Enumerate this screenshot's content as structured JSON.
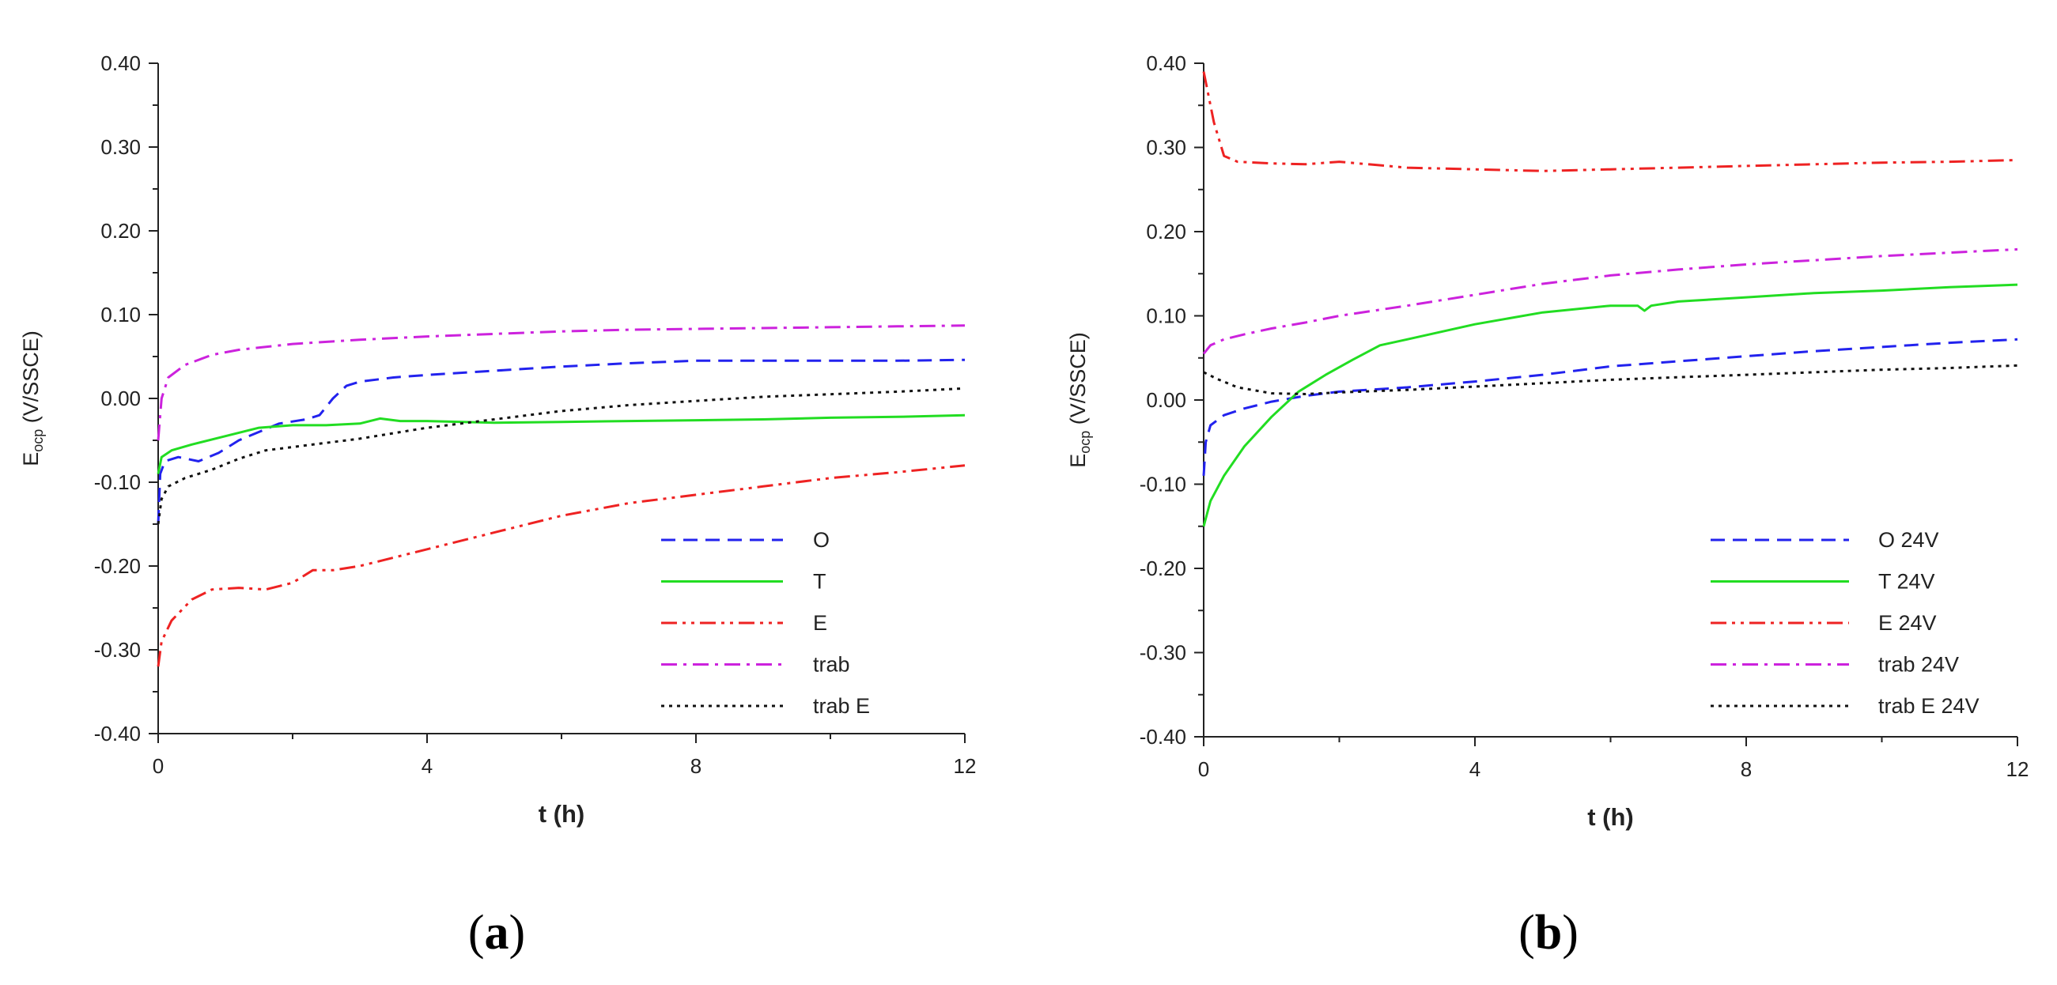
{
  "chart_data": [
    {
      "type": "line",
      "panel_label": "a",
      "xlabel": "t (h)",
      "ylabel_main": "E",
      "ylabel_sub": "ocp",
      "ylabel_rest": " (V/SSCE)",
      "xlim": [
        0,
        12
      ],
      "ylim": [
        -0.4,
        0.4
      ],
      "xticks": [
        0,
        4,
        8,
        12
      ],
      "yticks": [
        -0.4,
        -0.3,
        -0.2,
        -0.1,
        0.0,
        0.1,
        0.2,
        0.3,
        0.4
      ],
      "ytick_labels": [
        "-0.40",
        "-0.30",
        "-0.20",
        "-0.10",
        "0.00",
        "0.10",
        "0.20",
        "0.30",
        "0.40"
      ],
      "grid": false,
      "legend": "bottom-right",
      "series": [
        {
          "name": "O",
          "color": "#2222ee",
          "dash": "dash",
          "x": [
            0,
            0.03,
            0.1,
            0.3,
            0.6,
            0.9,
            1.2,
            1.8,
            2.2,
            2.4,
            2.6,
            2.8,
            3.0,
            3.5,
            4,
            5,
            6,
            7,
            8,
            9,
            10,
            11,
            12
          ],
          "y": [
            -0.15,
            -0.09,
            -0.075,
            -0.07,
            -0.075,
            -0.065,
            -0.05,
            -0.03,
            -0.025,
            -0.02,
            0.0,
            0.015,
            0.02,
            0.025,
            0.028,
            0.033,
            0.038,
            0.042,
            0.045,
            0.045,
            0.045,
            0.045,
            0.046
          ]
        },
        {
          "name": "T",
          "color": "#22dd22",
          "dash": "solid",
          "x": [
            0,
            0.05,
            0.2,
            0.5,
            1,
            1.5,
            2,
            2.5,
            3,
            3.3,
            3.6,
            4,
            5,
            6,
            7,
            8,
            9,
            10,
            11,
            12
          ],
          "y": [
            -0.09,
            -0.07,
            -0.062,
            -0.055,
            -0.045,
            -0.035,
            -0.032,
            -0.032,
            -0.03,
            -0.024,
            -0.027,
            -0.027,
            -0.029,
            -0.028,
            -0.027,
            -0.026,
            -0.025,
            -0.023,
            -0.022,
            -0.02
          ]
        },
        {
          "name": "E",
          "color": "#ee2222",
          "dash": "dashdotdot",
          "x": [
            0,
            0.05,
            0.2,
            0.5,
            0.8,
            1.2,
            1.6,
            2.0,
            2.3,
            2.6,
            3,
            4,
            5,
            6,
            7,
            8,
            9,
            10,
            11,
            12
          ],
          "y": [
            -0.32,
            -0.29,
            -0.265,
            -0.24,
            -0.228,
            -0.226,
            -0.228,
            -0.22,
            -0.205,
            -0.205,
            -0.2,
            -0.18,
            -0.16,
            -0.14,
            -0.125,
            -0.115,
            -0.105,
            -0.095,
            -0.088,
            -0.08
          ]
        },
        {
          "name": "trab",
          "color": "#cc22dd",
          "dash": "dashdot",
          "x": [
            0,
            0.05,
            0.15,
            0.4,
            0.8,
            1.2,
            2,
            3,
            4,
            5,
            6,
            7,
            8,
            9,
            10,
            11,
            12
          ],
          "y": [
            -0.05,
            0.0,
            0.025,
            0.04,
            0.052,
            0.058,
            0.065,
            0.07,
            0.074,
            0.077,
            0.08,
            0.082,
            0.083,
            0.084,
            0.085,
            0.086,
            0.087
          ]
        },
        {
          "name": "trab E",
          "color": "#111111",
          "dash": "dot",
          "x": [
            0,
            0.05,
            0.15,
            0.4,
            0.8,
            1.2,
            1.6,
            2,
            3,
            4,
            5,
            6,
            7,
            8,
            9,
            10,
            11,
            12
          ],
          "y": [
            -0.15,
            -0.12,
            -0.105,
            -0.095,
            -0.085,
            -0.072,
            -0.062,
            -0.058,
            -0.048,
            -0.035,
            -0.025,
            -0.015,
            -0.008,
            -0.003,
            0.002,
            0.005,
            0.008,
            0.012
          ]
        }
      ]
    },
    {
      "type": "line",
      "panel_label": "b",
      "xlabel": "t (h)",
      "ylabel_main": "E",
      "ylabel_sub": "ocp",
      "ylabel_rest": " (V/SSCE)",
      "xlim": [
        0,
        12
      ],
      "ylim": [
        -0.4,
        0.4
      ],
      "xticks": [
        0,
        4,
        8,
        12
      ],
      "yticks": [
        -0.4,
        -0.3,
        -0.2,
        -0.1,
        0.0,
        0.1,
        0.2,
        0.3,
        0.4
      ],
      "ytick_labels": [
        "-0.40",
        "-0.30",
        "-0.20",
        "-0.10",
        "0.00",
        "0.10",
        "0.20",
        "0.30",
        "0.40"
      ],
      "grid": false,
      "legend": "bottom-right",
      "series": [
        {
          "name": "O 24V",
          "color": "#2222ee",
          "dash": "dash",
          "x": [
            0,
            0.03,
            0.1,
            0.3,
            0.6,
            1.0,
            1.5,
            2,
            3,
            4,
            5,
            6,
            7,
            8,
            9,
            10,
            11,
            12
          ],
          "y": [
            -0.09,
            -0.05,
            -0.03,
            -0.018,
            -0.01,
            -0.002,
            0.005,
            0.01,
            0.015,
            0.022,
            0.03,
            0.04,
            0.046,
            0.052,
            0.058,
            0.063,
            0.068,
            0.072
          ]
        },
        {
          "name": "T 24V",
          "color": "#22dd22",
          "dash": "solid",
          "x": [
            0,
            0.1,
            0.3,
            0.6,
            1.0,
            1.4,
            1.8,
            2.2,
            2.6,
            3,
            4,
            5,
            6,
            6.4,
            6.5,
            6.6,
            7,
            8,
            9,
            10,
            11,
            12
          ],
          "y": [
            -0.15,
            -0.12,
            -0.09,
            -0.055,
            -0.02,
            0.01,
            0.03,
            0.048,
            0.065,
            0.072,
            0.09,
            0.104,
            0.112,
            0.112,
            0.106,
            0.112,
            0.117,
            0.122,
            0.127,
            0.13,
            0.134,
            0.137
          ]
        },
        {
          "name": "E 24V",
          "color": "#ee2222",
          "dash": "dashdotdot",
          "x": [
            0,
            0.05,
            0.15,
            0.3,
            0.5,
            1.0,
            1.5,
            2,
            3,
            4,
            5,
            6,
            7,
            8,
            9,
            10,
            11,
            12
          ],
          "y": [
            0.39,
            0.37,
            0.33,
            0.29,
            0.283,
            0.281,
            0.28,
            0.283,
            0.276,
            0.274,
            0.272,
            0.274,
            0.276,
            0.278,
            0.28,
            0.282,
            0.283,
            0.285
          ]
        },
        {
          "name": "trab 24V",
          "color": "#cc22dd",
          "dash": "dashdot",
          "x": [
            0,
            0.1,
            0.3,
            0.6,
            1,
            1.5,
            2,
            3,
            4,
            5,
            6,
            7,
            8,
            9,
            10,
            11,
            12
          ],
          "y": [
            0.055,
            0.065,
            0.072,
            0.078,
            0.085,
            0.092,
            0.1,
            0.112,
            0.125,
            0.138,
            0.148,
            0.155,
            0.161,
            0.166,
            0.171,
            0.175,
            0.179
          ]
        },
        {
          "name": "trab E 24V",
          "color": "#111111",
          "dash": "dot",
          "x": [
            0,
            0.2,
            0.5,
            1.0,
            1.5,
            2,
            3,
            4,
            5,
            6,
            7,
            8,
            9,
            10,
            11,
            12
          ],
          "y": [
            0.033,
            0.025,
            0.015,
            0.008,
            0.007,
            0.009,
            0.012,
            0.016,
            0.02,
            0.024,
            0.027,
            0.03,
            0.033,
            0.036,
            0.038,
            0.041
          ]
        }
      ]
    }
  ]
}
